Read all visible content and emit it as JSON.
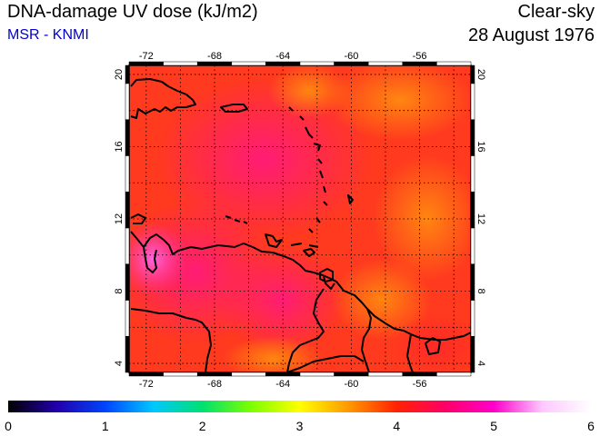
{
  "header": {
    "title": "DNA-damage UV dose (kJ/m2)",
    "credit": "MSR - KNMI",
    "condition": "Clear-sky",
    "date": "28 August 1976"
  },
  "colors": {
    "credit": "#0000cc",
    "field_base": "#ff3a1e",
    "coast": "#000000"
  },
  "map": {
    "lon_range": [
      -73,
      -53
    ],
    "lat_range": [
      3.5,
      20.5
    ],
    "lon_ticks": [
      "-72",
      "-68",
      "-64",
      "-60",
      "-56"
    ],
    "lon_tick_values": [
      -72,
      -68,
      -64,
      -60,
      -56
    ],
    "lat_ticks": [
      "4",
      "8",
      "12",
      "16",
      "20"
    ],
    "lat_tick_values": [
      4,
      8,
      12,
      16,
      20
    ],
    "grid": true
  },
  "colorbar": {
    "labels": [
      "0",
      "1",
      "2",
      "3",
      "4",
      "5",
      "6"
    ],
    "range": [
      0,
      6
    ],
    "stops": [
      "#000000",
      "#2200aa",
      "#0044ff",
      "#00c8ff",
      "#00e070",
      "#7cff00",
      "#ffff00",
      "#ff9a00",
      "#ff2200",
      "#ff0066",
      "#ff00cc",
      "#ffc8ff",
      "#ffffff"
    ]
  }
}
